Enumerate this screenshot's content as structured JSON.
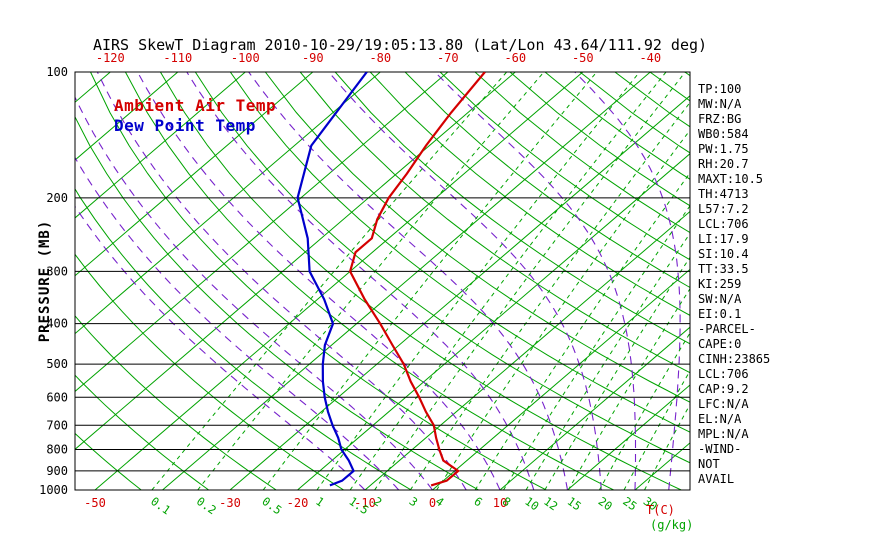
{
  "legend": {
    "ambient_label": "Ambient Air Temp",
    "dew_label": "Dew Point Temp"
  },
  "colors": {
    "ambient": "#d40000",
    "dew": "#0000cc",
    "isotherm": "#00a300",
    "dry_adiabat": "#00a300",
    "moist_adiabat": "#7722cc",
    "mixing_ratio": "#00a300",
    "grid": "#000000",
    "background": "#ffffff"
  },
  "stats": {
    "items": [
      "TP:100",
      "MW:N/A",
      "FRZ:BG",
      "WB0:584",
      "PW:1.75",
      "RH:20.7",
      "MAXT:10.5",
      "TH:4713",
      "L57:7.2",
      "LCL:706",
      "LI:17.9",
      "SI:10.4",
      "TT:33.5",
      "KI:259",
      "SW:N/A",
      "EI:0.1",
      "-PARCEL-",
      "CAPE:0",
      "CINH:23865",
      "LCL:706",
      "CAP:9.2",
      "LFC:N/A",
      "EL:N/A",
      "MPL:N/A",
      "-WIND-",
      "NOT",
      "AVAIL"
    ]
  },
  "chart_data": {
    "type": "line",
    "title": "AIRS SkewT Diagram 2010-10-29/19:05:13.80 (Lat/Lon 43.64/111.92 deg)",
    "x_axis": {
      "label": "T(C)",
      "secondary_label": "(g/kg)",
      "top_ticks": [
        -120,
        -110,
        -100,
        -90,
        -80,
        -70,
        -60,
        -50,
        -40
      ],
      "bottom_ticks": [
        -50,
        -30,
        -20,
        -10,
        0,
        10
      ]
    },
    "y_axis": {
      "label": "PRESSURE (MB)",
      "ticks": [
        100,
        200,
        300,
        400,
        500,
        600,
        700,
        800,
        900,
        1000
      ],
      "scale": "log",
      "range": [
        100,
        1000
      ]
    },
    "mixing_ratio_lines_g_kg": [
      0.1,
      0.2,
      0.5,
      1,
      1.5,
      2,
      3,
      4,
      6,
      8,
      10,
      12,
      15,
      20,
      25,
      30
    ],
    "background_lines": {
      "isotherms_C": {
        "min": -130,
        "max": 40,
        "step": 10
      },
      "dry_adiabats_K": {
        "min": 220,
        "max": 460,
        "step": 10
      },
      "moist_adiabats_C": {
        "min": -10,
        "max": 45,
        "step": 5
      }
    },
    "series": [
      {
        "name": "Ambient Air Temp",
        "color": "#d40000",
        "points_p_T": [
          [
            975,
            -1
          ],
          [
            950,
            0.5
          ],
          [
            900,
            0.5
          ],
          [
            850,
            -3.5
          ],
          [
            800,
            -6
          ],
          [
            750,
            -8.5
          ],
          [
            700,
            -11
          ],
          [
            650,
            -14.5
          ],
          [
            600,
            -18
          ],
          [
            550,
            -22
          ],
          [
            500,
            -26
          ],
          [
            450,
            -31
          ],
          [
            400,
            -36.5
          ],
          [
            350,
            -43
          ],
          [
            300,
            -50
          ],
          [
            270,
            -52.5
          ],
          [
            250,
            -52.5
          ],
          [
            225,
            -55
          ],
          [
            200,
            -57
          ],
          [
            175,
            -58.5
          ],
          [
            150,
            -60.5
          ],
          [
            125,
            -62.5
          ],
          [
            100,
            -64.5
          ]
        ]
      },
      {
        "name": "Dew Point Temp",
        "color": "#0000cc",
        "points_p_T": [
          [
            975,
            -16
          ],
          [
            950,
            -15
          ],
          [
            900,
            -15
          ],
          [
            850,
            -17.5
          ],
          [
            800,
            -20.5
          ],
          [
            750,
            -23
          ],
          [
            700,
            -26
          ],
          [
            650,
            -29
          ],
          [
            600,
            -32
          ],
          [
            550,
            -35
          ],
          [
            500,
            -38
          ],
          [
            450,
            -41
          ],
          [
            400,
            -43.5
          ],
          [
            350,
            -49
          ],
          [
            300,
            -56
          ],
          [
            250,
            -62
          ],
          [
            200,
            -70.5
          ],
          [
            150,
            -77.5
          ],
          [
            100,
            -82
          ]
        ]
      }
    ]
  }
}
